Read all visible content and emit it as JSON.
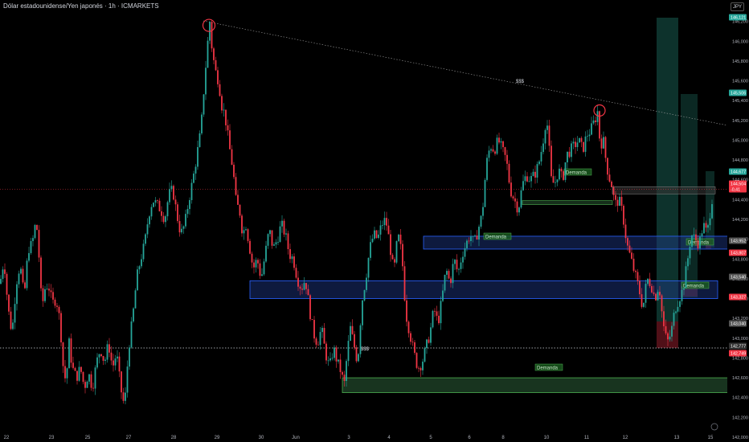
{
  "header": {
    "title": "Dólar estadounidense/Yen japonés · 1h · ICMARKETS"
  },
  "currency_button": "JPY",
  "chart_data": {
    "type": "candlestick",
    "title": "Dólar estadounidense/Yen japonés · 1h · ICMARKETS",
    "ylim": [
      142.0,
      146.4
    ],
    "y_ticks": [
      "146,200",
      "146,000",
      "145,800",
      "145,600",
      "145,400",
      "145,200",
      "145,000",
      "144,800",
      "144,600",
      "144,400",
      "144,200",
      "144,000",
      "143,800",
      "143,600",
      "143,400",
      "143,200",
      "143,000",
      "142,800",
      "142,600",
      "142,400",
      "142,200",
      "142,000"
    ],
    "x_ticks": [
      "22",
      "23",
      "25",
      "27",
      "28",
      "29",
      "30",
      "Jun",
      "3",
      "4",
      "5",
      "6",
      "8",
      "10",
      "11",
      "12",
      "13",
      "15"
    ],
    "grid": false,
    "price_path": [
      [
        0,
        143.55
      ],
      [
        5,
        143.8
      ],
      [
        10,
        143.3
      ],
      [
        15,
        143.05
      ],
      [
        20,
        143.55
      ],
      [
        25,
        143.75
      ],
      [
        30,
        143.4
      ],
      [
        35,
        143.9
      ],
      [
        40,
        143.95
      ],
      [
        45,
        144.2
      ],
      [
        48,
        143.9
      ],
      [
        52,
        143.3
      ],
      [
        56,
        143.5
      ],
      [
        60,
        143.55
      ],
      [
        65,
        143.35
      ],
      [
        70,
        143.4
      ],
      [
        75,
        143.15
      ],
      [
        78,
        142.75
      ],
      [
        82,
        142.55
      ],
      [
        86,
        142.95
      ],
      [
        90,
        142.7
      ],
      [
        95,
        142.6
      ],
      [
        100,
        142.7
      ],
      [
        105,
        142.5
      ],
      [
        110,
        142.65
      ],
      [
        115,
        142.5
      ],
      [
        120,
        142.75
      ],
      [
        125,
        142.9
      ],
      [
        130,
        142.75
      ],
      [
        135,
        142.95
      ],
      [
        140,
        142.7
      ],
      [
        145,
        142.85
      ],
      [
        150,
        142.5
      ],
      [
        155,
        142.3
      ],
      [
        160,
        142.9
      ],
      [
        165,
        143.2
      ],
      [
        170,
        143.6
      ],
      [
        175,
        143.8
      ],
      [
        180,
        143.95
      ],
      [
        185,
        144.25
      ],
      [
        190,
        144.4
      ],
      [
        195,
        144.35
      ],
      [
        200,
        144.3
      ],
      [
        205,
        144.2
      ],
      [
        210,
        144.45
      ],
      [
        215,
        144.5
      ],
      [
        220,
        144.25
      ],
      [
        225,
        144.05
      ],
      [
        230,
        144.15
      ],
      [
        235,
        144.4
      ],
      [
        240,
        144.6
      ],
      [
        245,
        144.85
      ],
      [
        250,
        145.1
      ],
      [
        254,
        145.55
      ],
      [
        258,
        145.95
      ],
      [
        261,
        146.2
      ],
      [
        264,
        145.9
      ],
      [
        268,
        145.7
      ],
      [
        272,
        145.6
      ],
      [
        276,
        145.35
      ],
      [
        280,
        145.25
      ],
      [
        285,
        144.95
      ],
      [
        290,
        144.7
      ],
      [
        294,
        144.35
      ],
      [
        298,
        144.3
      ],
      [
        302,
        144.05
      ],
      [
        306,
        144.15
      ],
      [
        310,
        143.95
      ],
      [
        315,
        143.7
      ],
      [
        320,
        143.8
      ],
      [
        325,
        143.6
      ],
      [
        330,
        143.85
      ],
      [
        335,
        144.1
      ],
      [
        340,
        143.9
      ],
      [
        345,
        144.0
      ],
      [
        350,
        144.15
      ],
      [
        355,
        144.05
      ],
      [
        360,
        143.85
      ],
      [
        365,
        143.8
      ],
      [
        370,
        143.6
      ],
      [
        375,
        143.5
      ],
      [
        380,
        143.6
      ],
      [
        385,
        143.3
      ],
      [
        390,
        143.05
      ],
      [
        395,
        142.95
      ],
      [
        400,
        143.1
      ],
      [
        405,
        142.85
      ],
      [
        410,
        142.7
      ],
      [
        415,
        142.9
      ],
      [
        420,
        142.75
      ],
      [
        425,
        142.65
      ],
      [
        428,
        142.5
      ],
      [
        432,
        142.85
      ],
      [
        436,
        143.1
      ],
      [
        440,
        142.95
      ],
      [
        445,
        142.75
      ],
      [
        450,
        143.35
      ],
      [
        455,
        143.6
      ],
      [
        460,
        143.9
      ],
      [
        465,
        144.05
      ],
      [
        470,
        144.0
      ],
      [
        475,
        144.15
      ],
      [
        480,
        144.2
      ],
      [
        485,
        143.95
      ],
      [
        490,
        143.65
      ],
      [
        495,
        144.05
      ],
      [
        500,
        143.85
      ],
      [
        505,
        143.25
      ],
      [
        510,
        143.05
      ],
      [
        515,
        142.85
      ],
      [
        520,
        142.7
      ],
      [
        525,
        142.75
      ],
      [
        530,
        142.9
      ],
      [
        535,
        143.05
      ],
      [
        540,
        143.3
      ],
      [
        545,
        143.15
      ],
      [
        550,
        143.4
      ],
      [
        555,
        143.7
      ],
      [
        560,
        143.55
      ],
      [
        565,
        143.8
      ],
      [
        570,
        143.65
      ],
      [
        575,
        143.85
      ],
      [
        580,
        143.95
      ],
      [
        585,
        144.05
      ],
      [
        590,
        143.95
      ],
      [
        595,
        144.1
      ],
      [
        600,
        144.25
      ],
      [
        605,
        144.75
      ],
      [
        610,
        144.95
      ],
      [
        615,
        144.9
      ],
      [
        620,
        145.0
      ],
      [
        625,
        144.9
      ],
      [
        630,
        144.8
      ],
      [
        635,
        144.5
      ],
      [
        640,
        144.4
      ],
      [
        645,
        144.3
      ],
      [
        650,
        144.55
      ],
      [
        655,
        144.65
      ],
      [
        660,
        144.6
      ],
      [
        665,
        144.65
      ],
      [
        670,
        144.75
      ],
      [
        675,
        144.95
      ],
      [
        680,
        145.25
      ],
      [
        683,
        144.95
      ],
      [
        686,
        144.6
      ],
      [
        690,
        144.55
      ],
      [
        695,
        144.7
      ],
      [
        700,
        144.6
      ],
      [
        705,
        144.85
      ],
      [
        710,
        144.9
      ],
      [
        715,
        144.95
      ],
      [
        720,
        145.0
      ],
      [
        725,
        144.9
      ],
      [
        730,
        145.05
      ],
      [
        735,
        145.1
      ],
      [
        740,
        145.2
      ],
      [
        744,
        145.3
      ],
      [
        747,
        144.9
      ],
      [
        750,
        145.05
      ],
      [
        753,
        144.85
      ],
      [
        757,
        144.65
      ],
      [
        761,
        144.55
      ],
      [
        765,
        144.35
      ],
      [
        770,
        144.4
      ],
      [
        775,
        144.25
      ],
      [
        780,
        143.95
      ],
      [
        785,
        143.8
      ],
      [
        790,
        143.65
      ],
      [
        795,
        143.5
      ],
      [
        800,
        143.3
      ],
      [
        805,
        143.6
      ],
      [
        810,
        143.55
      ],
      [
        815,
        143.4
      ],
      [
        820,
        143.55
      ],
      [
        825,
        143.15
      ],
      [
        830,
        142.95
      ],
      [
        835,
        143.05
      ],
      [
        840,
        143.3
      ],
      [
        845,
        143.4
      ],
      [
        850,
        143.5
      ],
      [
        855,
        143.75
      ],
      [
        860,
        144.05
      ],
      [
        865,
        144.0
      ],
      [
        870,
        143.95
      ],
      [
        875,
        144.15
      ],
      [
        880,
        144.05
      ],
      [
        884,
        144.3
      ],
      [
        888,
        144.52
      ]
    ],
    "drawings": {
      "trendline_label": "$$$",
      "support_label": "$$$",
      "demand_label": "Demanda"
    },
    "price_labels": [
      {
        "text": "146,121",
        "color": "#26a69a"
      },
      {
        "text": "145,506",
        "color": "#26a69a"
      },
      {
        "text": "144,677",
        "color": "#26a69a"
      },
      {
        "text": "144,504",
        "color": "#f23645"
      },
      {
        "text": "-0,41",
        "color": "#f23645"
      },
      {
        "text": "143,952",
        "color": "#555555"
      },
      {
        "text": "143,807",
        "color": "#f23645"
      },
      {
        "text": "143,540",
        "color": "#555555"
      },
      {
        "text": "143,327",
        "color": "#f23645"
      },
      {
        "text": "143,040",
        "color": "#555555"
      },
      {
        "text": "142,777",
        "color": "#333333"
      },
      {
        "text": "142,749",
        "color": "#f23645"
      }
    ],
    "colors": {
      "up": "#26a69a",
      "down": "#f23645",
      "blue_zone": "#2962ff",
      "demand": "#4caf50",
      "target": "#26a69a"
    }
  }
}
